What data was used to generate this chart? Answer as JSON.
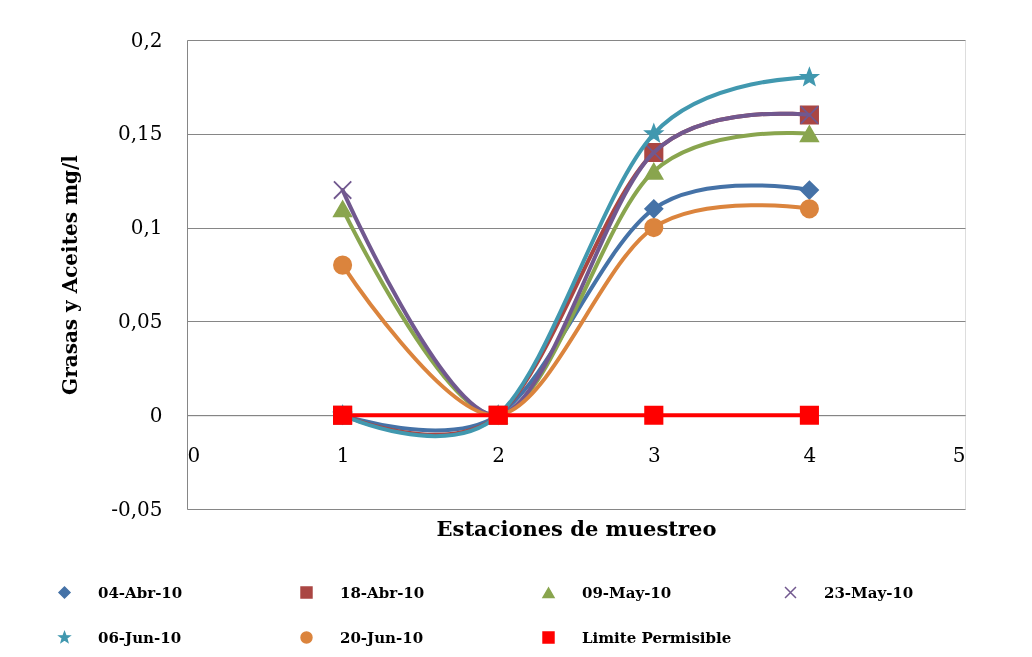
{
  "chart_data": {
    "type": "line",
    "xlabel": "Estaciones de muestreo",
    "ylabel": "Grasas y Aceites mg/l",
    "x": [
      1,
      2,
      3,
      4
    ],
    "xlim": [
      0,
      5
    ],
    "xticks": [
      0,
      1,
      2,
      3,
      4,
      5
    ],
    "ylim": [
      -0.05,
      0.2
    ],
    "yticks": [
      {
        "value": -0.05,
        "label": "-0,05"
      },
      0,
      {
        "value": 0.05,
        "label": "0,05"
      },
      {
        "value": 0.1,
        "label": "0,1"
      },
      {
        "value": 0.15,
        "label": "0,15"
      },
      {
        "value": 0.2,
        "label": "0,2"
      }
    ],
    "grid": "y",
    "legend": "bottom",
    "line_style": "solid",
    "series": [
      {
        "name": "04-Abr-10",
        "color": "#4572a7",
        "marker": "diamond",
        "values": [
          0,
          0,
          0.11,
          0.12
        ]
      },
      {
        "name": "18-Abr-10",
        "color": "#aa4643",
        "marker": "square",
        "values": [
          0,
          0,
          0.14,
          0.16
        ]
      },
      {
        "name": "09-May-10",
        "color": "#89a54e",
        "marker": "triangle",
        "values": [
          0.11,
          0,
          0.13,
          0.15
        ]
      },
      {
        "name": "23-May-10",
        "color": "#71588f",
        "marker": "cross",
        "values": [
          0.12,
          0,
          0.14,
          0.16
        ]
      },
      {
        "name": "06-Jun-10",
        "color": "#4198af",
        "marker": "star",
        "values": [
          0,
          0,
          0.15,
          0.18
        ]
      },
      {
        "name": "20-Jun-10",
        "color": "#db843d",
        "marker": "circle",
        "values": [
          0.08,
          0,
          0.1,
          0.11
        ]
      },
      {
        "name": "Limite Permisible",
        "color": "#ff0000",
        "marker": "square",
        "values": [
          0,
          0,
          0,
          0
        ]
      }
    ]
  }
}
